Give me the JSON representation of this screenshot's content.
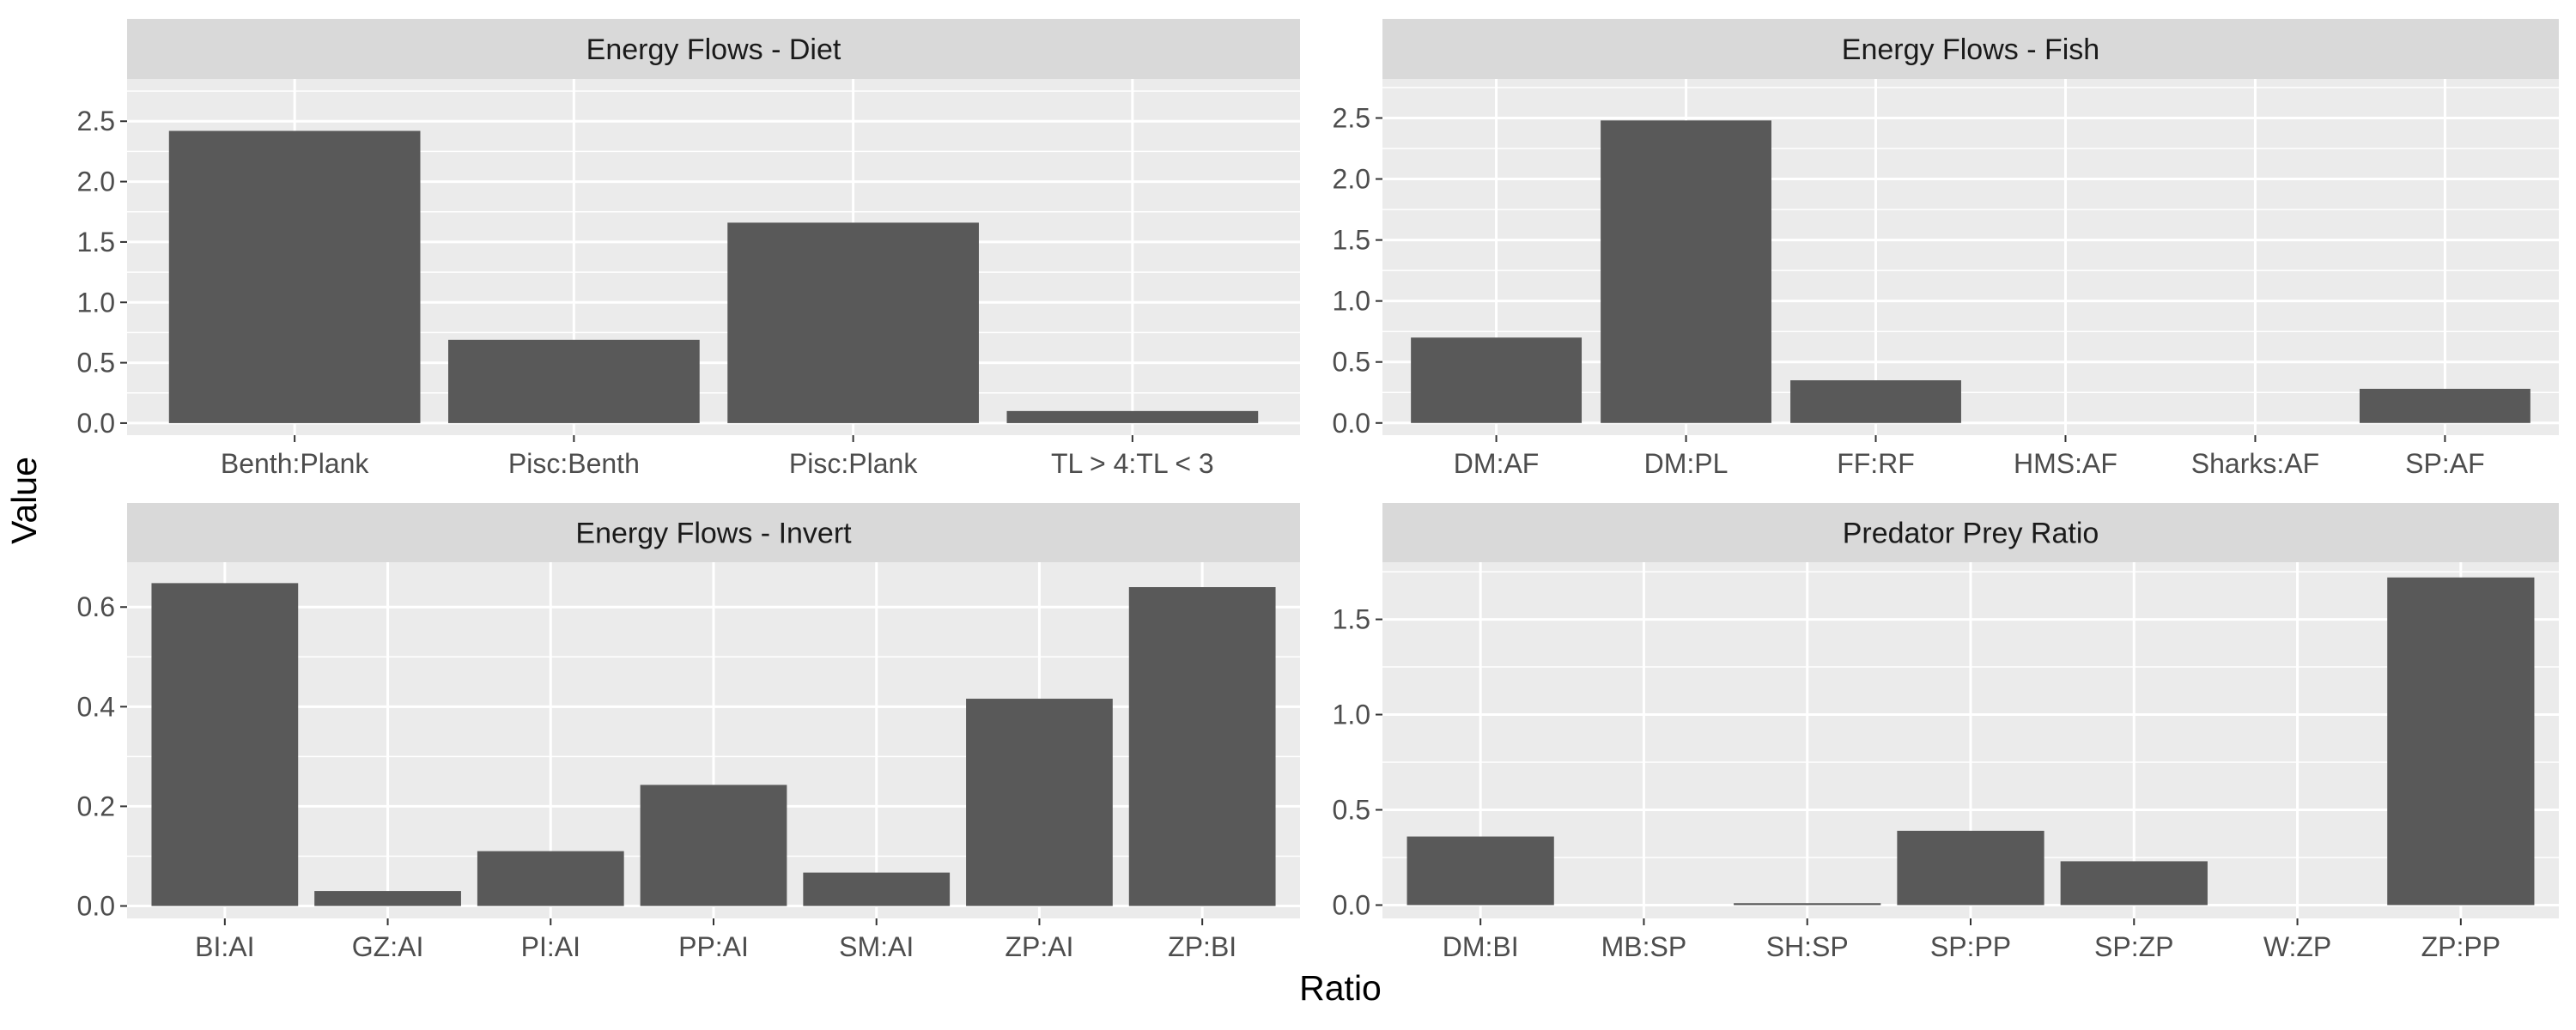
{
  "xlabel": "Ratio",
  "ylabel": "Value",
  "colors": {
    "panel_bg": "#EBEBEB",
    "strip_bg": "#D9D9D9",
    "grid": "#FFFFFF",
    "bar": "#595959"
  },
  "chart_data": [
    {
      "type": "bar",
      "title": "Energy Flows - Diet",
      "categories": [
        "Benth:Plank",
        "Pisc:Benth",
        "Pisc:Plank",
        "TL > 4:TL < 3"
      ],
      "values": [
        2.42,
        0.69,
        1.66,
        0.1
      ],
      "ylim": [
        -0.1,
        2.85
      ],
      "yticks": [
        "0.0",
        "0.5",
        "1.0",
        "1.5",
        "2.0",
        "2.5"
      ],
      "grid": true
    },
    {
      "type": "bar",
      "title": "Energy Flows - Fish",
      "categories": [
        "DM:AF",
        "DM:PL",
        "FF:RF",
        "HMS:AF",
        "Sharks:AF",
        "SP:AF"
      ],
      "values": [
        0.7,
        2.48,
        0.35,
        0.0,
        0.0,
        0.28
      ],
      "ylim": [
        -0.1,
        2.82
      ],
      "yticks": [
        "0.0",
        "0.5",
        "1.0",
        "1.5",
        "2.0",
        "2.5"
      ],
      "grid": true
    },
    {
      "type": "bar",
      "title": "Energy Flows - Invert",
      "categories": [
        "BI:AI",
        "GZ:AI",
        "PI:AI",
        "PP:AI",
        "SM:AI",
        "ZP:AI",
        "ZP:BI"
      ],
      "values": [
        0.648,
        0.03,
        0.11,
        0.243,
        0.067,
        0.416,
        0.64
      ],
      "ylim": [
        -0.025,
        0.69
      ],
      "yticks": [
        "0.0",
        "0.2",
        "0.4",
        "0.6"
      ],
      "grid": true
    },
    {
      "type": "bar",
      "title": "Predator Prey Ratio",
      "categories": [
        "DM:BI",
        "MB:SP",
        "SH:SP",
        "SP:PP",
        "SP:ZP",
        "W:ZP",
        "ZP:PP"
      ],
      "values": [
        0.36,
        0.0,
        0.01,
        0.39,
        0.23,
        0.0,
        1.72
      ],
      "ylim": [
        -0.07,
        1.8
      ],
      "yticks": [
        "0.0",
        "0.5",
        "1.0",
        "1.5"
      ],
      "grid": true
    }
  ]
}
